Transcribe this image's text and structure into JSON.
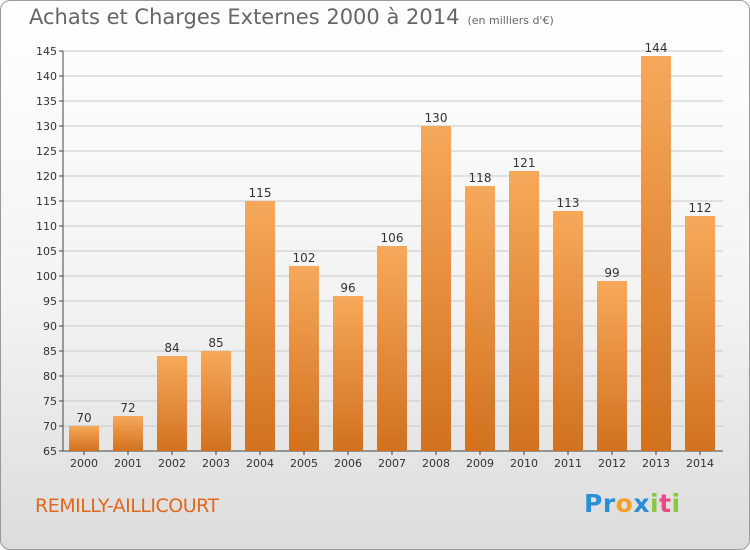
{
  "title": "Achats et Charges Externes 2000 à 2014",
  "unit": "(en milliers d'€)",
  "location": "REMILLY-AILLICOURT",
  "logo": {
    "letters": [
      "P",
      "r",
      "o",
      "x",
      "i",
      "t",
      "i"
    ],
    "colors": [
      "#2a8fd6",
      "#2a8fd6",
      "#f2a02a",
      "#2a8fd6",
      "#8cc63f",
      "#e84a86",
      "#8cc63f"
    ]
  },
  "colors": {
    "bar_light": "#f6a95a",
    "bar_dark": "#d2711e",
    "grid": "#c8c8c8"
  },
  "chart_data": {
    "type": "bar",
    "title": "Achats et Charges Externes 2000 à 2014",
    "subtitle": "(en milliers d'€)",
    "xlabel": "",
    "ylabel": "",
    "ylim": [
      65,
      145
    ],
    "ytick_step": 5,
    "grid": true,
    "categories": [
      "2000",
      "2001",
      "2002",
      "2003",
      "2004",
      "2005",
      "2006",
      "2007",
      "2008",
      "2009",
      "2010",
      "2011",
      "2012",
      "2013",
      "2014"
    ],
    "values": [
      70,
      72,
      84,
      85,
      115,
      102,
      96,
      106,
      130,
      118,
      121,
      113,
      99,
      144,
      112
    ]
  }
}
